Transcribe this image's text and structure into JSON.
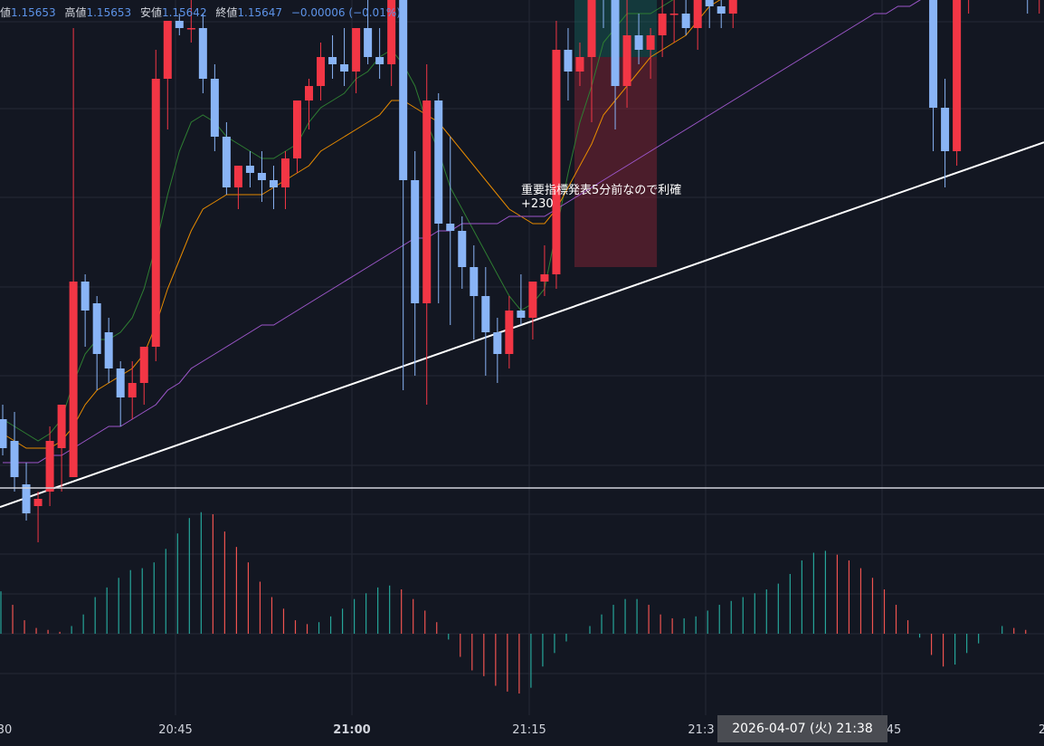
{
  "legend": {
    "open_label": "値",
    "open_value": "1.15653",
    "high_label": "高値",
    "high_value": "1.15653",
    "low_label": "安値",
    "low_value": "1.15642",
    "close_label": "終値",
    "close_value": "1.15647",
    "change": "−0.00006 (−0.01%)"
  },
  "annotation": {
    "line1": "重要指標発表5分前なので利確",
    "line2": "+230"
  },
  "crosshair_label": "2026-04-07 (火)   21:38",
  "colors": {
    "background": "#131722",
    "up": "#f23645",
    "down": "#89b4f6",
    "ma_fast": "#2e7d32",
    "ma_mid": "#e68a00",
    "ma_slow": "#9c56c9",
    "trendline": "#ffffff",
    "hist_pos": "#26a69a",
    "hist_neg": "#ef5350"
  },
  "chart_data": {
    "type": "candlestick",
    "x_tick_labels": [
      {
        "label": "30",
        "bold": false
      },
      {
        "label": "20:45",
        "bold": false
      },
      {
        "label": "21:00",
        "bold": true
      },
      {
        "label": "21:15",
        "bold": false
      },
      {
        "label": "21:3",
        "bold": false
      },
      {
        "label": "45",
        "bold": false
      },
      {
        "label": "2",
        "bold": false
      }
    ],
    "candles_ohlc": [
      [
        1.15632,
        1.15634,
        1.15627,
        1.15628
      ],
      [
        1.15629,
        1.15633,
        1.15622,
        1.15624
      ],
      [
        1.15623,
        1.15626,
        1.15618,
        1.15619
      ],
      [
        1.1562,
        1.15622,
        1.15615,
        1.15621
      ],
      [
        1.15622,
        1.15631,
        1.1562,
        1.15629
      ],
      [
        1.15628,
        1.15631,
        1.15622,
        1.15634
      ],
      [
        1.15624,
        1.15686,
        1.15624,
        1.15651
      ],
      [
        1.15651,
        1.15652,
        1.15642,
        1.15647
      ],
      [
        1.15648,
        1.15649,
        1.15636,
        1.15641
      ],
      [
        1.15644,
        1.15646,
        1.15637,
        1.15639
      ],
      [
        1.15639,
        1.1564,
        1.15631,
        1.15635
      ],
      [
        1.15635,
        1.1564,
        1.15632,
        1.15637
      ],
      [
        1.15637,
        1.15641,
        1.15634,
        1.15642
      ],
      [
        1.15642,
        1.15683,
        1.1564,
        1.15679
      ],
      [
        1.15679,
        1.15681,
        1.15672,
        1.15687
      ],
      [
        1.15687,
        1.15688,
        1.15685,
        1.15686
      ],
      [
        1.15686,
        1.1569,
        1.15684,
        1.15686
      ],
      [
        1.15686,
        1.15688,
        1.15677,
        1.15679
      ],
      [
        1.15679,
        1.15681,
        1.15669,
        1.15671
      ],
      [
        1.15671,
        1.15673,
        1.15663,
        1.15664
      ],
      [
        1.15664,
        1.15667,
        1.15661,
        1.15667
      ],
      [
        1.15667,
        1.15669,
        1.15664,
        1.15666
      ],
      [
        1.15666,
        1.15669,
        1.15662,
        1.15665
      ],
      [
        1.15665,
        1.15667,
        1.15661,
        1.15664
      ],
      [
        1.15664,
        1.15669,
        1.15661,
        1.15668
      ],
      [
        1.15668,
        1.15672,
        1.15666,
        1.15676
      ],
      [
        1.15676,
        1.15679,
        1.15672,
        1.15678
      ],
      [
        1.15678,
        1.15684,
        1.15676,
        1.15682
      ],
      [
        1.15682,
        1.15685,
        1.15679,
        1.15681
      ],
      [
        1.15681,
        1.15686,
        1.15678,
        1.1568
      ],
      [
        1.1568,
        1.15685,
        1.15677,
        1.15686
      ],
      [
        1.15686,
        1.1569,
        1.15681,
        1.15682
      ],
      [
        1.15682,
        1.15686,
        1.15679,
        1.15681
      ],
      [
        1.15681,
        1.15693,
        1.15678,
        1.15692
      ],
      [
        1.15692,
        1.15715,
        1.15636,
        1.15665
      ],
      [
        1.15665,
        1.15669,
        1.15638,
        1.15648
      ],
      [
        1.15648,
        1.15681,
        1.15634,
        1.15676
      ],
      [
        1.15676,
        1.15677,
        1.15648,
        1.15659
      ],
      [
        1.15659,
        1.15671,
        1.15645,
        1.15658
      ],
      [
        1.15658,
        1.1566,
        1.1565,
        1.15653
      ],
      [
        1.15653,
        1.15656,
        1.15643,
        1.15649
      ],
      [
        1.15649,
        1.15653,
        1.15638,
        1.15644
      ],
      [
        1.15644,
        1.15646,
        1.15637,
        1.15641
      ],
      [
        1.15641,
        1.15649,
        1.15639,
        1.15647
      ],
      [
        1.15647,
        1.15652,
        1.15645,
        1.15646
      ],
      [
        1.15646,
        1.15649,
        1.15643,
        1.15651
      ],
      [
        1.15651,
        1.15656,
        1.15649,
        1.15652
      ],
      [
        1.15652,
        1.15687,
        1.1565,
        1.15683
      ],
      [
        1.15683,
        1.15686,
        1.15676,
        1.1568
      ],
      [
        1.1568,
        1.15684,
        1.15678,
        1.15682
      ],
      [
        1.15682,
        1.15693,
        1.15673,
        1.15699
      ],
      [
        1.15699,
        1.15702,
        1.15686,
        1.15697
      ],
      [
        1.15697,
        1.157,
        1.15672,
        1.15678
      ],
      [
        1.15678,
        1.15707,
        1.15675,
        1.15685
      ],
      [
        1.15685,
        1.15688,
        1.15681,
        1.15683
      ],
      [
        1.15683,
        1.15686,
        1.15679,
        1.15685
      ],
      [
        1.15685,
        1.1569,
        1.15682,
        1.15688
      ],
      [
        1.15688,
        1.15692,
        1.15684,
        1.15688
      ],
      [
        1.15688,
        1.15693,
        1.15685,
        1.15686
      ],
      [
        1.15686,
        1.15695,
        1.15683,
        1.15694
      ],
      [
        1.15694,
        1.15698,
        1.15686,
        1.15689
      ],
      [
        1.15689,
        1.15693,
        1.15686,
        1.15688
      ],
      [
        1.15688,
        1.15704,
        1.15686,
        1.15702
      ],
      [
        1.15702,
        1.15704,
        1.15693,
        1.15696
      ],
      [
        1.15696,
        1.157,
        1.15691,
        1.157
      ],
      [
        1.157,
        1.15702,
        1.15695,
        1.15704
      ],
      [
        1.15704,
        1.15707,
        1.15694,
        1.15711
      ],
      [
        1.15711,
        1.15713,
        1.15707,
        1.15716
      ],
      [
        1.15716,
        1.15719,
        1.15711,
        1.15714
      ],
      [
        1.15714,
        1.15719,
        1.15711,
        1.15718
      ],
      [
        1.15718,
        1.15719,
        1.15708,
        1.15716
      ],
      [
        1.15716,
        1.15723,
        1.15714,
        1.15722
      ],
      [
        1.15722,
        1.15722,
        1.15718,
        1.15719
      ],
      [
        1.15719,
        1.15721,
        1.15706,
        1.15708
      ],
      [
        1.15708,
        1.1571,
        1.15704,
        1.15708
      ],
      [
        1.15708,
        1.1571,
        1.15704,
        1.15709
      ],
      [
        1.15709,
        1.15711,
        1.15707,
        1.15708
      ],
      [
        1.15708,
        1.15709,
        1.15702,
        1.15704
      ],
      [
        1.15704,
        1.15708,
        1.1569,
        1.15692
      ],
      [
        1.15692,
        1.15694,
        1.15669,
        1.15675
      ],
      [
        1.15675,
        1.15679,
        1.15664,
        1.15669
      ],
      [
        1.15669,
        1.15692,
        1.15667,
        1.1569
      ],
      [
        1.1569,
        1.15707,
        1.15688,
        1.15704
      ],
      [
        1.15704,
        1.15706,
        1.15703,
        1.15705
      ],
      [
        1.15705,
        1.15708,
        1.157,
        1.15706
      ],
      [
        1.15706,
        1.15733,
        1.157,
        1.15722
      ],
      [
        1.15722,
        1.15725,
        1.15694,
        1.15695
      ],
      [
        1.15695,
        1.15697,
        1.15688,
        1.1569
      ],
      [
        1.1569,
        1.15697,
        1.15688,
        1.15694
      ]
    ],
    "histogram": [
      22,
      15,
      7,
      3,
      2,
      1,
      4,
      10,
      19,
      24,
      29,
      33,
      34,
      37,
      44,
      52,
      60,
      63,
      62,
      53,
      45,
      37,
      27,
      19,
      13,
      7,
      5,
      6,
      9,
      13,
      18,
      21,
      24,
      25,
      23,
      18,
      12,
      6,
      -3,
      -12,
      -19,
      -22,
      -27,
      -30,
      -31,
      -28,
      -17,
      -10,
      -4,
      0,
      4,
      10,
      15,
      18,
      18,
      15,
      10,
      8,
      8,
      9,
      12,
      15,
      17,
      19,
      21,
      23,
      26,
      31,
      38,
      42,
      43,
      41,
      38,
      34,
      29,
      23,
      15,
      7,
      -2,
      -11,
      -17,
      -16,
      -10,
      -5,
      0,
      4,
      3,
      2
    ],
    "moving_averages": [
      {
        "values": [
          1.15632,
          1.15631,
          1.1563,
          1.15629,
          1.1563,
          1.15632,
          1.15637,
          1.15641,
          1.15643,
          1.15643,
          1.15644,
          1.15646,
          1.1565,
          1.15656,
          1.15663,
          1.15669,
          1.15673,
          1.15674,
          1.15673,
          1.15671,
          1.1567,
          1.15669,
          1.15668,
          1.15668,
          1.15669,
          1.1567,
          1.15673,
          1.15675,
          1.15676,
          1.15677,
          1.15679,
          1.1568,
          1.15682,
          1.15683,
          1.15681,
          1.15678,
          1.15673,
          1.15669,
          1.15664,
          1.15661,
          1.15658,
          1.15655,
          1.15652,
          1.15649,
          1.15647,
          1.15648,
          1.1565,
          1.15658,
          1.15666,
          1.15673,
          1.15678,
          1.15684,
          1.15686,
          1.15688,
          1.15688,
          1.15688,
          1.15689,
          1.1569,
          1.1569,
          1.15692,
          1.15694,
          1.15696,
          1.15699,
          1.15701,
          1.15704,
          1.15707,
          1.15711,
          1.15713,
          1.15715,
          1.15716,
          1.15717,
          1.15718,
          1.15718,
          1.15716,
          1.15714,
          1.15712,
          1.1571,
          1.15708,
          1.15704,
          1.15699,
          1.15695,
          1.15694,
          1.15696,
          1.15698,
          1.157,
          1.15701,
          1.15699,
          1.15697,
          1.15696
        ]
      },
      {
        "values": [
          1.1563,
          1.15629,
          1.15628,
          1.15628,
          1.15628,
          1.15629,
          1.15631,
          1.15634,
          1.15636,
          1.15637,
          1.15638,
          1.15639,
          1.15641,
          1.15645,
          1.1565,
          1.15654,
          1.15658,
          1.15661,
          1.15662,
          1.15663,
          1.15663,
          1.15663,
          1.15663,
          1.15664,
          1.15665,
          1.15666,
          1.15667,
          1.15669,
          1.1567,
          1.15671,
          1.15672,
          1.15673,
          1.15674,
          1.15676,
          1.15676,
          1.15675,
          1.15674,
          1.15673,
          1.15671,
          1.15669,
          1.15667,
          1.15665,
          1.15663,
          1.15661,
          1.1566,
          1.15659,
          1.15659,
          1.15661,
          1.15664,
          1.15667,
          1.1567,
          1.15674,
          1.15676,
          1.15678,
          1.1568,
          1.15682,
          1.15683,
          1.15684,
          1.15685,
          1.15687,
          1.15689,
          1.1569,
          1.15692,
          1.15694,
          1.15696,
          1.15698,
          1.157,
          1.15702,
          1.15704,
          1.15705,
          1.15707,
          1.15708,
          1.15709,
          1.15709,
          1.15709,
          1.15709,
          1.15709,
          1.15708,
          1.15707,
          1.15705,
          1.15703,
          1.15702,
          1.15702,
          1.15702,
          1.15703,
          1.15703,
          1.15702,
          1.15702,
          1.15701
        ]
      },
      {
        "values": [
          1.15626,
          1.15626,
          1.15626,
          1.15626,
          1.15627,
          1.15627,
          1.15628,
          1.15629,
          1.1563,
          1.15631,
          1.15631,
          1.15632,
          1.15633,
          1.15634,
          1.15636,
          1.15637,
          1.15639,
          1.1564,
          1.15641,
          1.15642,
          1.15643,
          1.15644,
          1.15645,
          1.15645,
          1.15646,
          1.15647,
          1.15648,
          1.15649,
          1.1565,
          1.15651,
          1.15652,
          1.15653,
          1.15654,
          1.15655,
          1.15656,
          1.15657,
          1.15657,
          1.15658,
          1.15658,
          1.15659,
          1.15659,
          1.15659,
          1.15659,
          1.1566,
          1.1566,
          1.1566,
          1.1566,
          1.15661,
          1.15662,
          1.15663,
          1.15664,
          1.15665,
          1.15666,
          1.15667,
          1.15668,
          1.15669,
          1.1567,
          1.15671,
          1.15672,
          1.15673,
          1.15674,
          1.15675,
          1.15676,
          1.15677,
          1.15678,
          1.15679,
          1.1568,
          1.15681,
          1.15682,
          1.15683,
          1.15684,
          1.15685,
          1.15686,
          1.15687,
          1.15688,
          1.15688,
          1.15689,
          1.15689,
          1.1569,
          1.1569,
          1.1569,
          1.1569,
          1.15691,
          1.15691,
          1.15692,
          1.15692,
          1.15693,
          1.15693,
          1.15694
        ]
      }
    ],
    "trendline": {
      "from": [
        0,
        1.1562
      ],
      "to": [
        88,
        1.1567
      ]
    },
    "position_box": {
      "start_index": 49,
      "end_index": 55,
      "entry": 1.15682,
      "target": 1.1574,
      "stop": 1.15653
    }
  }
}
